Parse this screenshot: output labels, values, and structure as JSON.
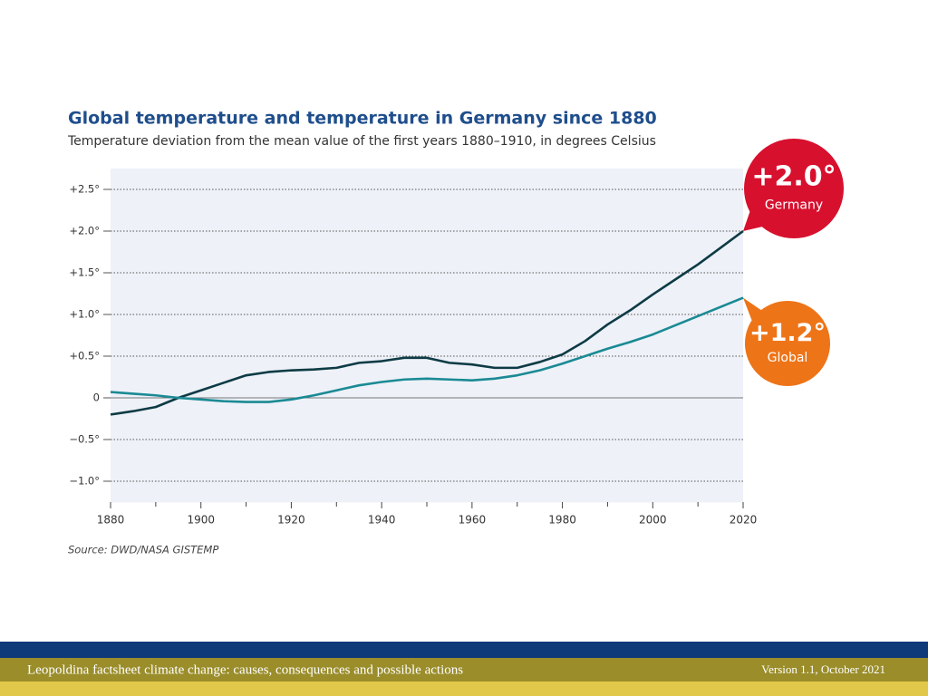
{
  "chart_data": {
    "type": "line",
    "title": "Global temperature and temperature in Germany since 1880",
    "subtitle": "Temperature deviation from the mean value of the first years 1880–1910, in degrees Celsius",
    "source": "Source: DWD/NASA GISTEMP",
    "x": [
      1880,
      1885,
      1890,
      1895,
      1900,
      1905,
      1910,
      1915,
      1920,
      1925,
      1930,
      1935,
      1940,
      1945,
      1950,
      1955,
      1960,
      1965,
      1970,
      1975,
      1980,
      1985,
      1990,
      1995,
      2000,
      2005,
      2010,
      2015,
      2020
    ],
    "series": [
      {
        "name": "Germany",
        "color": "#0d3b45",
        "values": [
          -0.2,
          -0.16,
          -0.11,
          0.0,
          0.09,
          0.18,
          0.27,
          0.31,
          0.33,
          0.34,
          0.36,
          0.42,
          0.44,
          0.48,
          0.48,
          0.42,
          0.4,
          0.36,
          0.36,
          0.43,
          0.52,
          0.68,
          0.88,
          1.05,
          1.24,
          1.42,
          1.6,
          1.8,
          2.0
        ]
      },
      {
        "name": "Global",
        "color": "#1a8a94",
        "values": [
          0.07,
          0.05,
          0.03,
          0.0,
          -0.02,
          -0.04,
          -0.05,
          -0.05,
          -0.02,
          0.03,
          0.09,
          0.15,
          0.19,
          0.22,
          0.23,
          0.22,
          0.21,
          0.23,
          0.27,
          0.33,
          0.41,
          0.5,
          0.59,
          0.67,
          0.76,
          0.87,
          0.98,
          1.09,
          1.2
        ]
      }
    ],
    "callouts": [
      {
        "text": "+2.0°",
        "label": "Germany",
        "color": "#d7102e"
      },
      {
        "text": "+1.2°",
        "label": "Global",
        "color": "#ee7418"
      }
    ],
    "xlim": [
      1880,
      2020
    ],
    "xticks": [
      1880,
      1900,
      1920,
      1940,
      1960,
      1980,
      2000,
      2020
    ],
    "ylim": [
      -1.25,
      2.75
    ],
    "yticks": [
      {
        "value": -1.0,
        "label": "−1.0°"
      },
      {
        "value": -0.5,
        "label": "−0.5°"
      },
      0,
      {
        "value": 0.5,
        "label": "+0.5°"
      },
      {
        "value": 1.0,
        "label": "+1.0°"
      },
      {
        "value": 1.5,
        "label": "+1.5°"
      },
      {
        "value": 2.0,
        "label": "+2.0°"
      },
      {
        "value": 2.5,
        "label": "+2.5°"
      }
    ],
    "grid": true
  },
  "footer": {
    "text": "Leopoldina factsheet climate change: causes, consequences and possible actions",
    "version": "Version 1.1, October 2021"
  }
}
